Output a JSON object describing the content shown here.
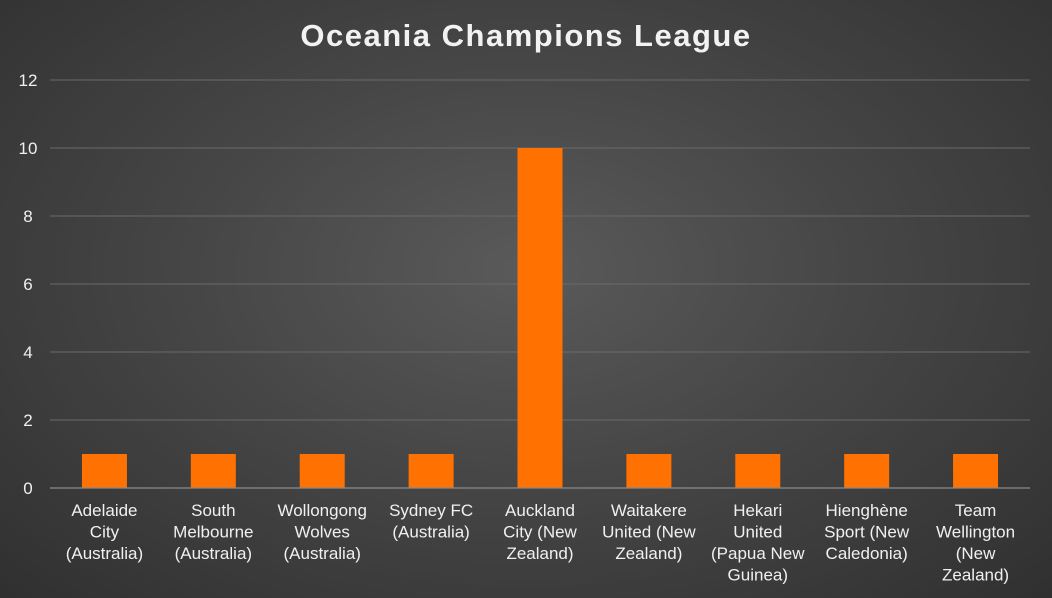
{
  "chart_data": {
    "type": "bar",
    "title": "Oceania Champions League",
    "xlabel": "",
    "ylabel": "",
    "categories": [
      [
        "Adelaide",
        "City",
        "(Australia)"
      ],
      [
        "South",
        "Melbourne",
        "(Australia)"
      ],
      [
        "Wollongong",
        "Wolves",
        "(Australia)"
      ],
      [
        "Sydney FC",
        "(Australia)"
      ],
      [
        "Auckland",
        "City (New",
        "Zealand)"
      ],
      [
        "Waitakere",
        "United (New",
        "Zealand)"
      ],
      [
        "Hekari",
        "United",
        "(Papua New",
        "Guinea)"
      ],
      [
        "Hienghène",
        "Sport (New",
        "Caledonia)"
      ],
      [
        "Team",
        "Wellington",
        "(New",
        "Zealand)"
      ]
    ],
    "values": [
      1,
      1,
      1,
      1,
      10,
      1,
      1,
      1,
      1
    ],
    "ylim": [
      0,
      12
    ],
    "yticks": [
      0,
      2,
      4,
      6,
      8,
      10,
      12
    ],
    "grid": true,
    "bar_color": "#ff7100",
    "text_color": "#f0f0f0",
    "grid_color": "#6a6a6a"
  }
}
